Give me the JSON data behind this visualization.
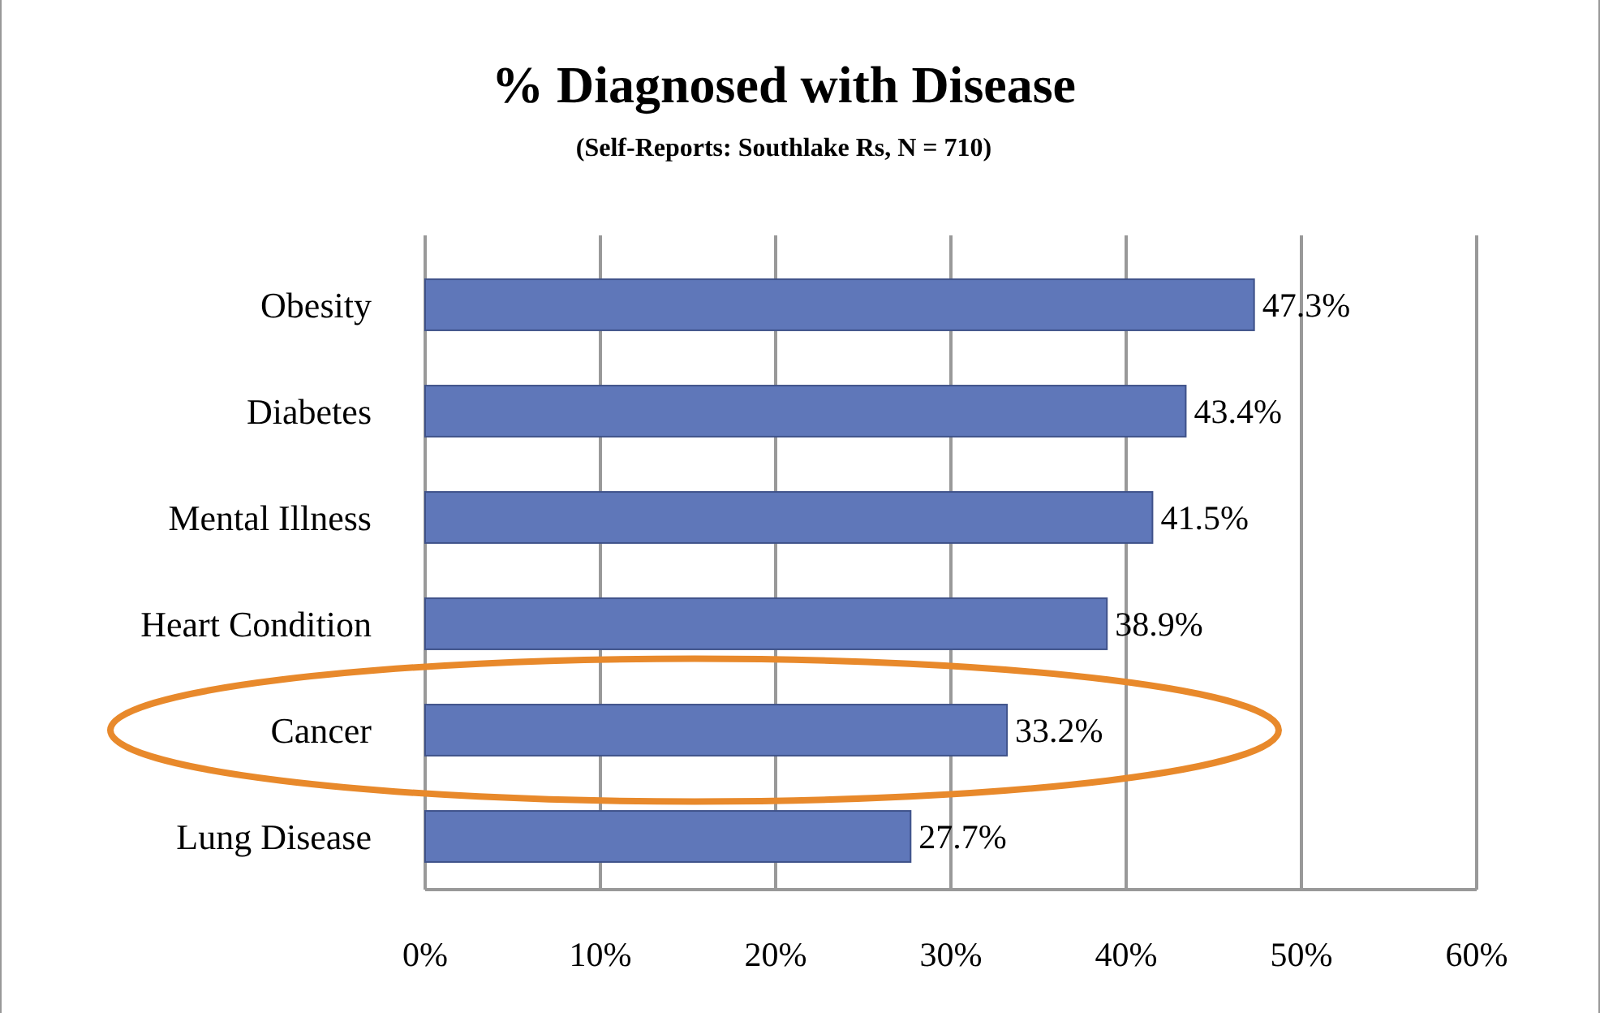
{
  "chart_data": {
    "type": "bar",
    "orientation": "horizontal",
    "title": "% Diagnosed with Disease",
    "subtitle": "(Self-Reports: Southlake Rs, N = 710)",
    "categories": [
      "Obesity",
      "Diabetes",
      "Mental Illness",
      "Heart Condition",
      "Cancer",
      "Lung Disease"
    ],
    "values": [
      47.3,
      43.4,
      41.5,
      38.9,
      33.2,
      27.7
    ],
    "value_labels": [
      "47.3%",
      "43.4%",
      "41.5%",
      "38.9%",
      "33.2%",
      "27.7%"
    ],
    "color": "#5f77b9",
    "xlim": [
      0,
      60
    ],
    "xticks": [
      {
        "value": 0,
        "label": "0%"
      },
      {
        "value": 10,
        "label": "10%"
      },
      {
        "value": 20,
        "label": "20%"
      },
      {
        "value": 30,
        "label": "30%"
      },
      {
        "value": 40,
        "label": "40%"
      },
      {
        "value": 50,
        "label": "50%"
      },
      {
        "value": 60,
        "label": "60%"
      }
    ],
    "grid": "x"
  }
}
